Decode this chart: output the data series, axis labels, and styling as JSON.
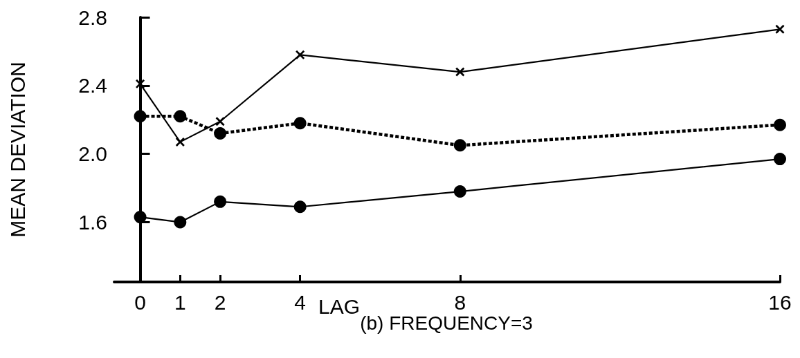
{
  "chart_data": {
    "type": "line",
    "title": "(b) FREQUENCY=3",
    "xlabel": "LAG",
    "ylabel": "MEAN DEVIATION",
    "x": [
      0,
      1,
      2,
      4,
      8,
      16
    ],
    "series": [
      {
        "color": "#000000",
        "marker": "cross",
        "line_style": "solid",
        "values": [
          2.41,
          2.07,
          2.19,
          2.58,
          2.48,
          2.73
        ]
      },
      {
        "color": "#000000",
        "marker": "circle",
        "line_style": "dashed",
        "values": [
          2.22,
          2.22,
          2.12,
          2.18,
          2.05,
          2.17
        ]
      },
      {
        "color": "#000000",
        "marker": "circle",
        "line_style": "solid",
        "values": [
          1.63,
          1.6,
          1.72,
          1.69,
          1.78,
          1.97
        ]
      }
    ],
    "xlim": [
      -0.65,
      16
    ],
    "xticks": [
      0,
      1,
      2,
      4,
      8,
      16
    ],
    "ylim": [
      1.25,
      2.8
    ],
    "yticks": [
      1.6,
      {
        "value": 2,
        "label": "2.0"
      },
      2.4,
      2.8
    ],
    "grid": false
  }
}
